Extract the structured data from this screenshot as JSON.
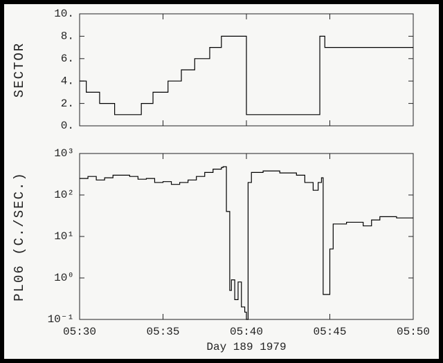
{
  "chart_data": [
    {
      "type": "line",
      "step": "post",
      "ylabel": "SECTOR",
      "color": "#000000",
      "x": [
        330,
        330.4,
        331.2,
        332.1,
        333.7,
        334.4,
        335.3,
        336.1,
        336.9,
        337.8,
        338.5,
        340.0,
        344.4,
        344.7,
        350
      ],
      "values": [
        4,
        3,
        2,
        1,
        2,
        3,
        4,
        5,
        6,
        7,
        8,
        1,
        8,
        7,
        7
      ],
      "xlim": [
        330,
        350
      ],
      "ylim": [
        0,
        10
      ],
      "yticks": [
        {
          "value": 0,
          "label": "0."
        },
        {
          "value": 2,
          "label": "2."
        },
        {
          "value": 4,
          "label": "4."
        },
        {
          "value": 6,
          "label": "6."
        },
        {
          "value": 8,
          "label": "8."
        },
        {
          "value": 10,
          "label": "10."
        }
      ]
    },
    {
      "type": "line",
      "step": "post",
      "ylabel": "PL06 (C./SEC.)",
      "xlabel": "Day 189 1979",
      "color": "#000000",
      "log_y": true,
      "x": [
        330,
        330.5,
        331,
        331.5,
        332,
        333,
        333.5,
        334,
        334.5,
        335,
        335.5,
        336,
        336.5,
        337,
        337.5,
        338,
        338.5,
        338.6,
        338.8,
        339,
        339.1,
        339.3,
        339.5,
        339.7,
        339.9,
        340.0,
        340.1,
        340.3,
        341,
        342,
        343,
        343.5,
        344,
        344.3,
        344.5,
        344.6,
        344.9,
        345,
        345.2,
        346,
        347,
        347.5,
        348,
        349,
        350
      ],
      "values": [
        250,
        280,
        230,
        260,
        300,
        280,
        240,
        250,
        200,
        210,
        180,
        200,
        230,
        280,
        350,
        420,
        460,
        480,
        40,
        0.5,
        0.9,
        0.3,
        0.8,
        0.2,
        0.15,
        0.1,
        200,
        350,
        380,
        340,
        300,
        200,
        130,
        200,
        260,
        0.4,
        0.4,
        5,
        20,
        22,
        18,
        25,
        30,
        28,
        28
      ],
      "xlim": [
        330,
        350
      ],
      "ylim": [
        0.1,
        1000
      ],
      "xticks": [
        {
          "value": 330,
          "label": "05:30"
        },
        {
          "value": 335,
          "label": "05:35"
        },
        {
          "value": 340,
          "label": "05:40"
        },
        {
          "value": 345,
          "label": "05:45"
        },
        {
          "value": 350,
          "label": "05:50"
        }
      ],
      "yticks": [
        {
          "value": 0.1,
          "label": "10⁻¹"
        },
        {
          "value": 1,
          "label": "10⁰"
        },
        {
          "value": 10,
          "label": "10¹"
        },
        {
          "value": 100,
          "label": "10²"
        },
        {
          "value": 1000,
          "label": "10³"
        }
      ]
    }
  ]
}
